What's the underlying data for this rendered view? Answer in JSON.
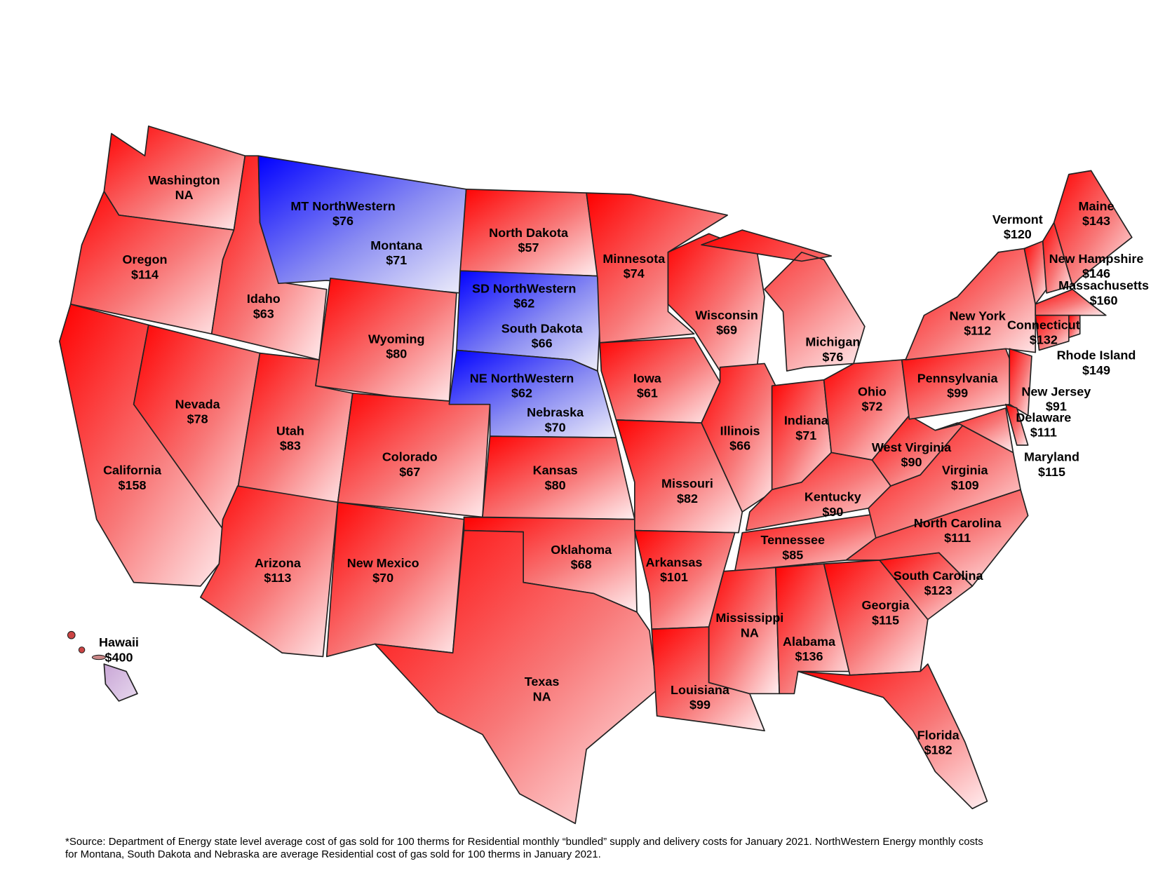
{
  "states": [
    {
      "name": "Washington",
      "cost": "NA"
    },
    {
      "name": "Oregon",
      "cost": "$114"
    },
    {
      "name": "California",
      "cost": "$158"
    },
    {
      "name": "Nevada",
      "cost": "$78"
    },
    {
      "name": "Idaho",
      "cost": "$63"
    },
    {
      "name": "MT NorthWestern",
      "cost": "$76"
    },
    {
      "name": "Montana",
      "cost": "$71"
    },
    {
      "name": "Wyoming",
      "cost": "$80"
    },
    {
      "name": "Utah",
      "cost": "$83"
    },
    {
      "name": "Colorado",
      "cost": "$67"
    },
    {
      "name": "Arizona",
      "cost": "$113"
    },
    {
      "name": "New Mexico",
      "cost": "$70"
    },
    {
      "name": "North Dakota",
      "cost": "$57"
    },
    {
      "name": "SD NorthWestern",
      "cost": "$62"
    },
    {
      "name": "South Dakota",
      "cost": "$66"
    },
    {
      "name": "NE NorthWestern",
      "cost": "$62"
    },
    {
      "name": "Nebraska",
      "cost": "$70"
    },
    {
      "name": "Kansas",
      "cost": "$80"
    },
    {
      "name": "Oklahoma",
      "cost": "$68"
    },
    {
      "name": "Texas",
      "cost": "NA"
    },
    {
      "name": "Minnesota",
      "cost": "$74"
    },
    {
      "name": "Iowa",
      "cost": "$61"
    },
    {
      "name": "Missouri",
      "cost": "$82"
    },
    {
      "name": "Arkansas",
      "cost": "$101"
    },
    {
      "name": "Louisiana",
      "cost": "$99"
    },
    {
      "name": "Wisconsin",
      "cost": "$69"
    },
    {
      "name": "Illinois",
      "cost": "$66"
    },
    {
      "name": "Michigan",
      "cost": "$76"
    },
    {
      "name": "Indiana",
      "cost": "$71"
    },
    {
      "name": "Ohio",
      "cost": "$72"
    },
    {
      "name": "Kentucky",
      "cost": "$90"
    },
    {
      "name": "Tennessee",
      "cost": "$85"
    },
    {
      "name": "Mississippi",
      "cost": "NA"
    },
    {
      "name": "Alabama",
      "cost": "$136"
    },
    {
      "name": "Georgia",
      "cost": "$115"
    },
    {
      "name": "Florida",
      "cost": "$182"
    },
    {
      "name": "South Carolina",
      "cost": "$123"
    },
    {
      "name": "North Carolina",
      "cost": "$111"
    },
    {
      "name": "Virginia",
      "cost": "$109"
    },
    {
      "name": "West Virginia",
      "cost": "$90"
    },
    {
      "name": "Pennsylvania",
      "cost": "$99"
    },
    {
      "name": "New York",
      "cost": "$112"
    },
    {
      "name": "New Jersey",
      "cost": "$91"
    },
    {
      "name": "Delaware",
      "cost": "$111"
    },
    {
      "name": "Maryland",
      "cost": "$115"
    },
    {
      "name": "Vermont",
      "cost": "$120"
    },
    {
      "name": "New Hampshire",
      "cost": "$146"
    },
    {
      "name": "Maine",
      "cost": "$143"
    },
    {
      "name": "Massachusetts",
      "cost": "$160"
    },
    {
      "name": "Connecticut",
      "cost": "$132"
    },
    {
      "name": "Rhode Island",
      "cost": "$149"
    },
    {
      "name": "Hawaii",
      "cost": "$400"
    }
  ],
  "footnote": "*Source:  Department of Energy state level average cost of gas sold for 100 therms for Residential monthly “bundled” supply and delivery costs for January 2021. NorthWestern Energy monthly costs for Montana, South Dakota and Nebraska are average Residential cost of gas sold for 100 therms in January 2021."
}
